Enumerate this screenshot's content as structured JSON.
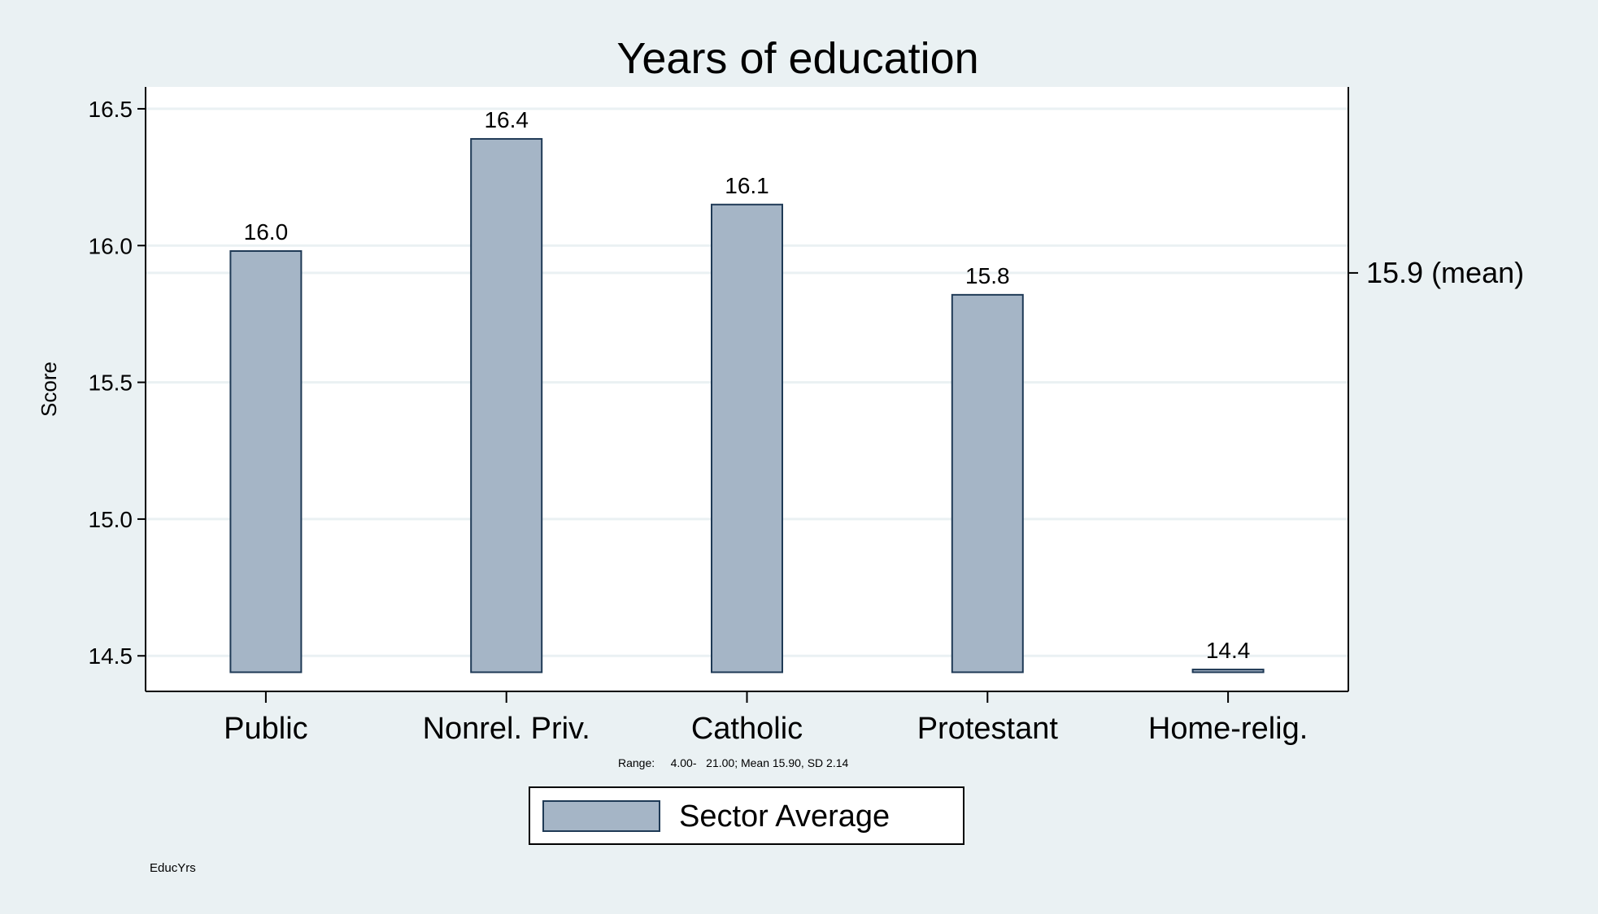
{
  "chart_data": {
    "type": "bar",
    "title": "Years of education",
    "ylabel": "Score",
    "xlabel": "",
    "categories": [
      "Public",
      "Nonrel. Priv.",
      "Catholic",
      "Protestant",
      "Home-relig."
    ],
    "series": [
      {
        "name": "Sector Average",
        "values": [
          15.98,
          16.39,
          16.15,
          15.82,
          14.45
        ],
        "labels": [
          "16.0",
          "16.4",
          "16.1",
          "15.8",
          "14.4"
        ]
      }
    ],
    "ylim": [
      14.37,
      16.58
    ],
    "yticks": [
      14.5,
      15.0,
      15.5,
      16.0,
      16.5
    ],
    "ytick_labels": [
      "14.5",
      "15.0",
      "15.5",
      "16.0",
      "16.5"
    ],
    "mean_line": {
      "value": 15.9,
      "label": "15.9 (mean)"
    },
    "note": "Range:     4.00-   21.00; Mean 15.90, SD 2.14",
    "footer": "EducYrs",
    "legend_position": "bottom-center",
    "grid": true
  },
  "colors": {
    "background": "#eaf1f3",
    "plot_background": "#ffffff",
    "bar_fill": "#a5b5c6",
    "bar_stroke": "#1f3a56",
    "gridline": "#eaf1f3",
    "axis": "#000000"
  }
}
